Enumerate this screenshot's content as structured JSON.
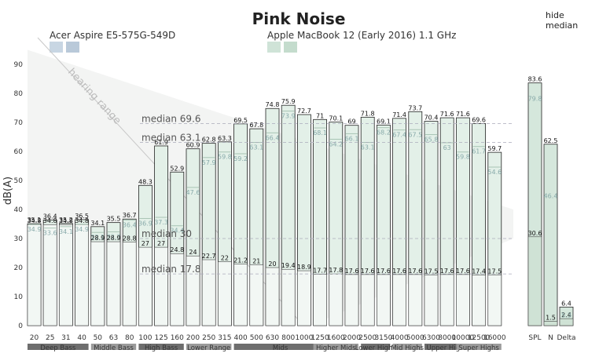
{
  "title": "Pink Noise",
  "hide_link": "hide median",
  "devices": [
    {
      "name": "Acer Aspire E5-575G-549D",
      "swatches": [
        "#c8d6e3",
        "#b9c9d9"
      ]
    },
    {
      "name": "Apple MacBook 12 (Early 2016) 1.1 GHz",
      "swatches": [
        "#cfe3d7",
        "#c4dccd"
      ]
    }
  ],
  "hearing_range_label": "hearing range",
  "medians": [
    {
      "label": "median 69.6",
      "value": 69.6
    },
    {
      "label": "median 63.1",
      "value": 63.1
    },
    {
      "label": "median 30",
      "value": 30
    },
    {
      "label": "median 17.8",
      "value": 17.8
    }
  ],
  "colors": {
    "bar_fill": "#e3f0e8",
    "bar_stroke": "#222",
    "secondary_fill": "#cfe2d5",
    "band": "#777"
  },
  "chart_data": {
    "type": "bar",
    "title": "Pink Noise",
    "ylabel": "dB(A)",
    "ylim": [
      0,
      95
    ],
    "yticks": [
      0,
      10,
      20,
      30,
      40,
      50,
      60,
      70,
      80,
      90
    ],
    "categories": [
      "20",
      "25",
      "31",
      "40",
      "50",
      "63",
      "80",
      "100",
      "125",
      "160",
      "200",
      "250",
      "315",
      "400",
      "500",
      "630",
      "800",
      "1000",
      "1250",
      "1600",
      "2000",
      "2500",
      "3150",
      "4000",
      "5000",
      "6300",
      "8000",
      "10000",
      "12500",
      "16000"
    ],
    "series": [
      {
        "values": [
          35.1,
          36.4,
          35.2,
          36.5,
          34.1,
          35.5,
          36.7,
          48.3,
          61.9,
          52.9,
          60.9,
          62.8,
          63.3,
          69.5,
          67.8,
          74.8,
          75.9,
          72.7,
          71,
          70.1,
          69,
          71.8,
          69.1,
          71.4,
          73.7,
          70.4,
          71.6,
          71.6,
          69.6,
          59.7
        ]
      },
      {
        "values": [
          34.8,
          34.8,
          34.8,
          34.8,
          28.9,
          28.9,
          28.8,
          27,
          27,
          24.8,
          24,
          22.7,
          22,
          21.2,
          21,
          20,
          19.4,
          18.9,
          17.7,
          17.8,
          17.6,
          17.6,
          17.6,
          17.6,
          17.6,
          17.5,
          17.6,
          17.6,
          17.4,
          17.5
        ]
      }
    ],
    "ghost_values": [
      34.9,
      33.6,
      34.1,
      34.9,
      32.1,
      32.3,
      36.4,
      36.9,
      37.3,
      34.4,
      47.6,
      57.9,
      59.8,
      59.2,
      63.1,
      66.4,
      73.9,
      null,
      68.1,
      64.2,
      66.1,
      63.1,
      68.2,
      67.4,
      67.5,
      65.8,
      63,
      59.8,
      61.7,
      54.6
    ],
    "summary_categories": [
      "SPL",
      "N",
      "Delta"
    ],
    "summary_values": [
      83.6,
      62.5,
      6.4
    ],
    "summary_secondary": [
      30.6,
      1.5,
      2.4
    ],
    "summary_ghost": [
      79.8,
      46.4,
      5.3
    ],
    "bands": [
      "Deep Bass",
      "Middle Bass",
      "High Bass",
      "Lower Range",
      "Mids",
      "Higher Mids",
      "Lower Highs",
      "Mid Highs",
      "Upper Highs",
      "Super Highs"
    ]
  }
}
